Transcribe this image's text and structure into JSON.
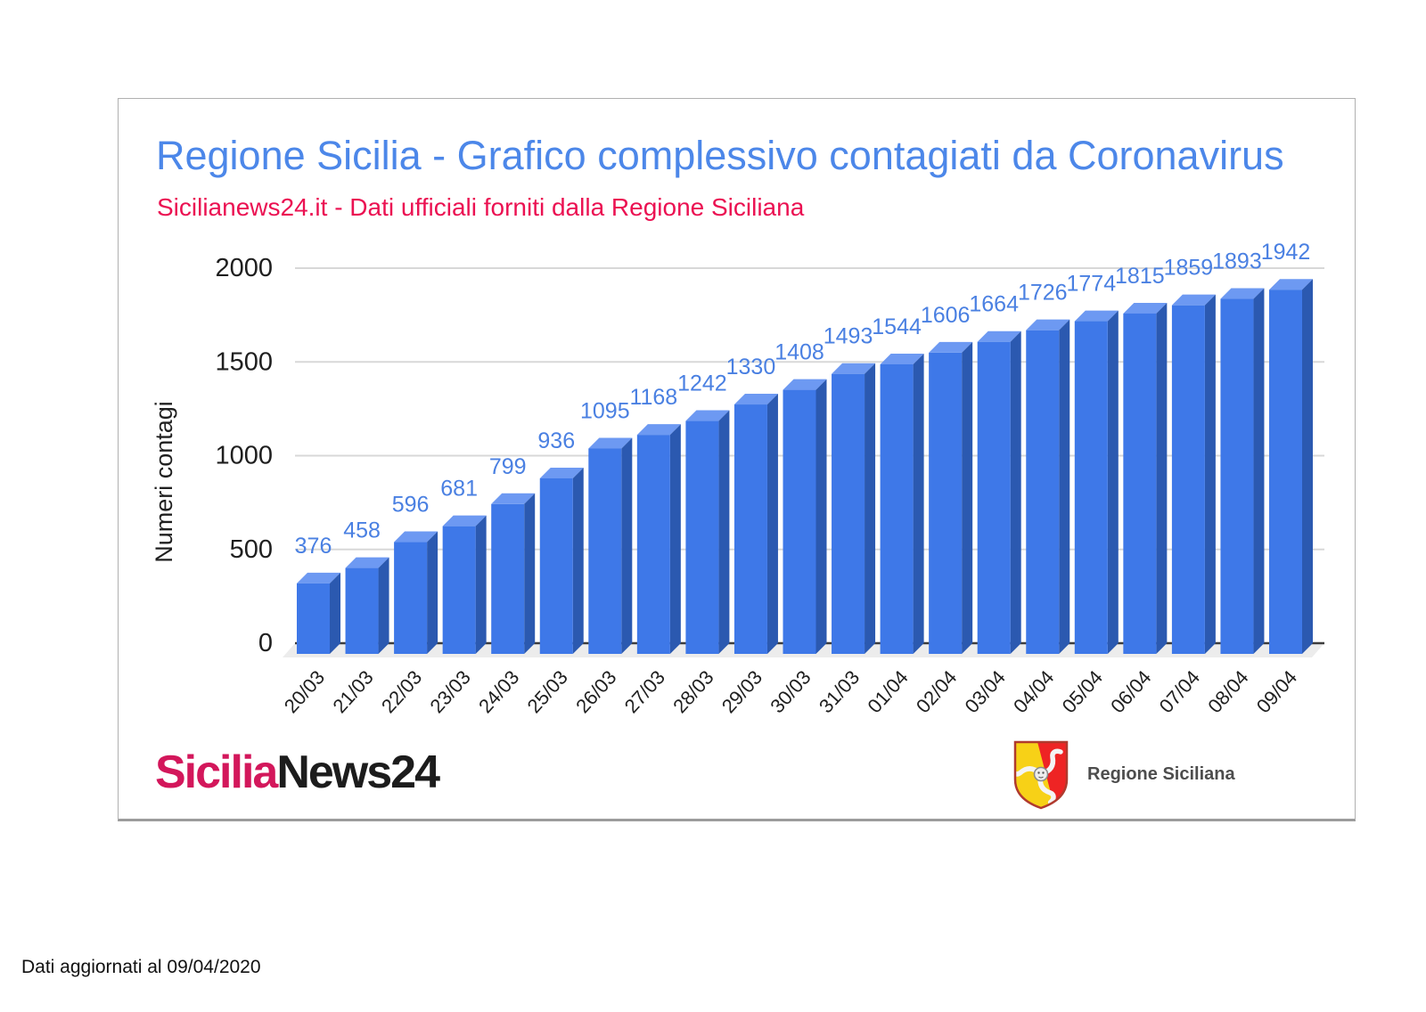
{
  "header": {
    "title": "Regione Sicilia - Grafico complessivo contagiati da Coronavirus",
    "subtitle": "Sicilianews24.it - Dati ufficiali forniti dalla Regione Siciliana"
  },
  "chart_data": {
    "type": "bar",
    "title": "Regione Sicilia - Grafico complessivo contagiati da Coronavirus",
    "subtitle": "Sicilianews24.it - Dati ufficiali forniti dalla Regione Siciliana",
    "xlabel": "",
    "ylabel": "Numeri contagi",
    "ylim": [
      0,
      2000
    ],
    "yticks": [
      0,
      500,
      1000,
      1500,
      2000
    ],
    "grid": "horizontal",
    "legend_position": "none",
    "style": "3d-column",
    "categories": [
      "20/03",
      "21/03",
      "22/03",
      "23/03",
      "24/03",
      "25/03",
      "26/03",
      "27/03",
      "28/03",
      "29/03",
      "30/03",
      "31/03",
      "01/04",
      "02/04",
      "03/04",
      "04/04",
      "05/04",
      "06/04",
      "07/04",
      "08/04",
      "09/04"
    ],
    "values": [
      376,
      458,
      596,
      681,
      799,
      936,
      1095,
      1168,
      1242,
      1330,
      1408,
      1493,
      1544,
      1606,
      1664,
      1726,
      1774,
      1815,
      1859,
      1893,
      1942
    ]
  },
  "branding": {
    "sicilia": "Sicilia",
    "news24": "News24",
    "regione": "Regione Siciliana"
  },
  "footer": {
    "note": "Dati aggiornati al 09/04/2020"
  },
  "colors": {
    "title": "#4c87e9",
    "subtitle": "#eb1152",
    "bar_front": "#3e78e8",
    "bar_top": "#6d99f2",
    "bar_side": "#2b59b0",
    "value_label": "#4a80e2",
    "gridline": "#d8d8d8",
    "axis_baseline": "#3d3d3d",
    "floor": "#ececec",
    "axis_text": "#1f1f1f",
    "logo_sicilia": "#d3175b",
    "logo_news24": "#1c1c1c",
    "crest_red": "#ee2424",
    "crest_yellow": "#f7d117",
    "crest_outline": "#b03a2e",
    "regione_text": "#4d4d4d"
  }
}
